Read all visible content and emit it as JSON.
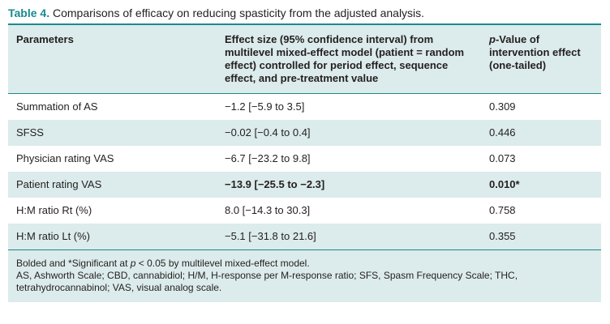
{
  "caption": {
    "number": "Table 4.",
    "title": "Comparisons of efficacy on reducing spasticity from the adjusted analysis."
  },
  "table": {
    "headers": [
      "Parameters",
      "Effect size (95% confidence interval) from multilevel mixed-effect model (patient = random effect) controlled for period effect, sequence effect, and pre-treatment value",
      "p-Value of intervention effect (one-tailed)"
    ],
    "header_p_italic": "p",
    "header_p_rest": "-Value of intervention effect (one-tailed)",
    "rows": [
      {
        "parameter": "Summation of AS",
        "effect": "−1.2 [−5.9 to 3.5]",
        "p": "0.309",
        "bold": false
      },
      {
        "parameter": "SFSS",
        "effect": "−0.02 [−0.4 to 0.4]",
        "p": "0.446",
        "bold": false
      },
      {
        "parameter": "Physician rating VAS",
        "effect": "−6.7 [−23.2 to 9.8]",
        "p": "0.073",
        "bold": false
      },
      {
        "parameter": "Patient rating VAS",
        "effect": "−13.9 [−25.5 to −2.3]",
        "p": "0.010*",
        "bold": true
      },
      {
        "parameter": "H:M ratio Rt (%)",
        "effect": "8.0 [−14.3 to 30.3]",
        "p": "0.758",
        "bold": false
      },
      {
        "parameter": "H:M ratio Lt (%)",
        "effect": "−5.1 [−31.8 to 21.6]",
        "p": "0.355",
        "bold": false
      }
    ]
  },
  "footnote": {
    "line1_pre": "Bolded and *Significant at ",
    "line1_p": "p",
    "line1_post": " < 0.05 by multilevel mixed-effect model.",
    "line2": "AS, Ashworth Scale; CBD, cannabidiol; H/M, H-response per M-response ratio; SFS, Spasm Frequency Scale; THC, tetrahydrocannabinol; VAS, visual analog scale."
  },
  "colors": {
    "accent": "#1a8a8f",
    "shade": "#dcebeb"
  }
}
